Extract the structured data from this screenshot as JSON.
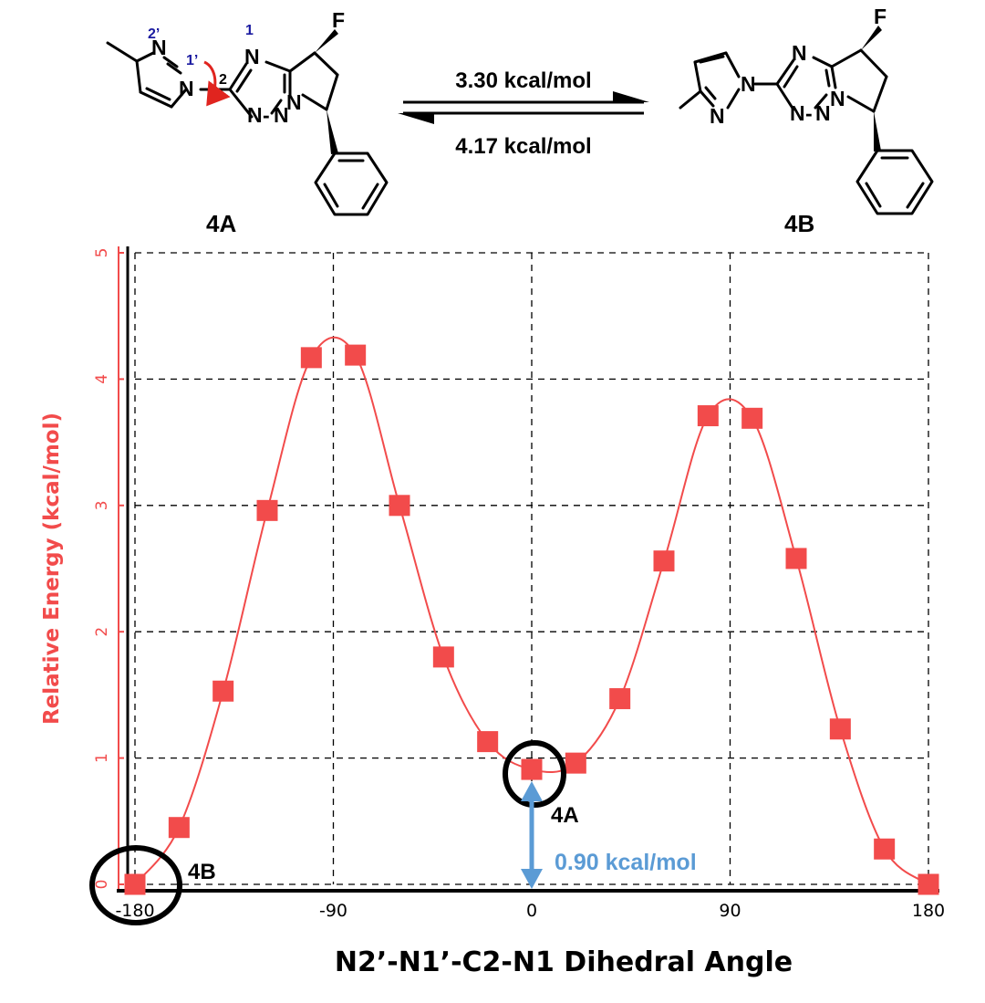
{
  "scheme": {
    "left_label": "4A",
    "right_label": "4B",
    "forward_barrier": "3.30 kcal/mol",
    "reverse_barrier": "4.17 kcal/mol",
    "atom_labels": {
      "F": "F",
      "N": "N"
    },
    "numbering": [
      "2’",
      "1’",
      "2",
      "1"
    ]
  },
  "colors": {
    "series": "#f24b4b",
    "arrow_blue": "#5b9bd5",
    "numbering": "#1a1aa0",
    "rotation_arrow": "#e0241f"
  },
  "chart_data": {
    "type": "line",
    "xlabel": "N2’-N1’-C2-N1 Dihedral Angle",
    "ylabel": "Relative Energy (kcal/mol)",
    "xlim": [
      -180,
      180
    ],
    "ylim": [
      0,
      5
    ],
    "xticks": [
      -180,
      -90,
      0,
      90,
      180
    ],
    "yticks": [
      0,
      1,
      2,
      3,
      4,
      5
    ],
    "grid": true,
    "series": [
      {
        "marker": "square",
        "x": [
          -180,
          -160,
          -140,
          -120,
          -100,
          -80,
          -60,
          -40,
          -20,
          0,
          20,
          40,
          60,
          80,
          100,
          120,
          140,
          160,
          180
        ],
        "y": [
          0.0,
          0.45,
          1.53,
          2.96,
          4.17,
          4.19,
          3.0,
          1.8,
          1.13,
          0.91,
          0.96,
          1.47,
          2.56,
          3.71,
          3.69,
          2.58,
          1.23,
          0.28,
          0.0
        ]
      }
    ],
    "annotations": {
      "min_label": "4B",
      "local_min_label": "4A",
      "energy_gap": "0.90 kcal/mol"
    }
  }
}
